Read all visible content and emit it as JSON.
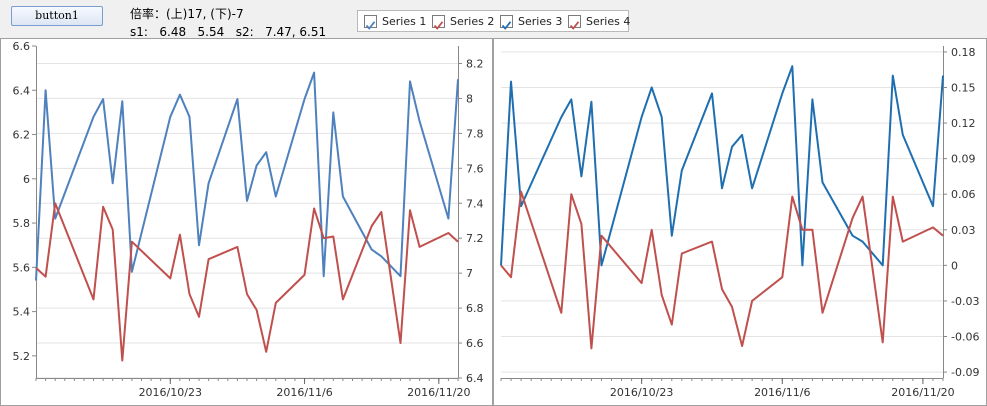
{
  "toolbar": {
    "button1_label": "button1"
  },
  "info": {
    "ratio_label": "倍率：(上)17, (下)-7",
    "values_label": "s1:   6.48   5.54   s2:   7.47, 6.51"
  },
  "legend": [
    {
      "label": "Series 1",
      "color": "#4f81bd"
    },
    {
      "label": "Series 2",
      "color": "#c0504d"
    },
    {
      "label": "Series 3",
      "color": "#1f6fb0"
    },
    {
      "label": "Series 4",
      "color": "#c0504d"
    }
  ],
  "chart_data": [
    {
      "type": "line",
      "x_ticks": [
        "2016/10/23",
        "2016/11/6",
        "2016/11/20"
      ],
      "x_tick_index": [
        14,
        28,
        42
      ],
      "x_count": 45,
      "y_left_ticks": [
        "5.2",
        "5.4",
        "5.6",
        "5.8",
        "6",
        "6.2",
        "6.4",
        "6.6"
      ],
      "y_left_range": [
        5.1,
        6.6
      ],
      "y_right_ticks": [
        "6.4",
        "6.6",
        "6.8",
        "7",
        "7.2",
        "7.4",
        "7.6",
        "7.8",
        "8",
        "8.2"
      ],
      "y_right_range": [
        6.4,
        8.3
      ],
      "grid": true,
      "series": [
        {
          "name": "Series 1",
          "axis": "left",
          "color": "#4f81bd",
          "values": [
            5.54,
            6.4,
            5.82,
            6.28,
            6.36,
            5.98,
            6.35,
            5.58,
            6.28,
            6.38,
            6.28,
            5.7,
            5.98,
            6.36,
            5.9,
            6.06,
            6.12,
            5.92,
            6.36,
            6.48,
            5.56,
            6.3,
            5.92,
            5.68,
            5.65,
            5.56,
            6.44,
            6.26,
            5.82,
            6.45
          ]
        },
        {
          "name": "Series 2",
          "axis": "right",
          "color": "#c0504d",
          "values": [
            7.03,
            6.98,
            7.4,
            6.85,
            7.38,
            7.25,
            6.5,
            7.18,
            6.97,
            7.22,
            6.88,
            6.75,
            7.08,
            7.15,
            6.88,
            6.79,
            6.55,
            6.83,
            6.99,
            7.37,
            7.2,
            7.21,
            6.85,
            7.27,
            7.35,
            6.6,
            7.36,
            7.15,
            7.23,
            7.18
          ]
        }
      ],
      "series_x_index": [
        0,
        1,
        2,
        6,
        7,
        8,
        9,
        10,
        14,
        15,
        16,
        17,
        18,
        21,
        22,
        23,
        24,
        25,
        28,
        29,
        30,
        31,
        32,
        35,
        36,
        38,
        39,
        40,
        43,
        44
      ]
    },
    {
      "type": "line",
      "x_ticks": [
        "2016/10/23",
        "2016/11/6",
        "2016/11/20"
      ],
      "x_tick_index": [
        14,
        28,
        42
      ],
      "x_count": 45,
      "y_left_ticks": [],
      "y_right_ticks": [
        "-0.09",
        "-0.06",
        "-0.03",
        "0",
        "0.03",
        "0.06",
        "0.09",
        "0.12",
        "0.15",
        "0.18"
      ],
      "y_right_range": [
        -0.095,
        0.185
      ],
      "grid": true,
      "series": [
        {
          "name": "Series 3",
          "axis": "right",
          "color": "#1f6fb0",
          "values": [
            0.0,
            0.155,
            0.05,
            0.125,
            0.14,
            0.075,
            0.138,
            0.0,
            0.125,
            0.15,
            0.125,
            0.025,
            0.08,
            0.145,
            0.065,
            0.1,
            0.11,
            0.065,
            0.145,
            0.168,
            0.0,
            0.14,
            0.07,
            0.025,
            0.02,
            0.0,
            0.16,
            0.11,
            0.05,
            0.16
          ]
        },
        {
          "name": "Series 4",
          "axis": "right",
          "color": "#c0504d",
          "values": [
            0.0,
            -0.01,
            0.062,
            -0.04,
            0.06,
            0.035,
            -0.07,
            0.025,
            -0.015,
            0.03,
            -0.025,
            -0.05,
            0.01,
            0.02,
            -0.02,
            -0.035,
            -0.068,
            -0.03,
            -0.01,
            0.058,
            0.03,
            0.03,
            -0.04,
            0.04,
            0.058,
            -0.065,
            0.058,
            0.02,
            0.032,
            0.025
          ]
        }
      ],
      "series_x_index": [
        0,
        1,
        2,
        6,
        7,
        8,
        9,
        10,
        14,
        15,
        16,
        17,
        18,
        21,
        22,
        23,
        24,
        25,
        28,
        29,
        30,
        31,
        32,
        35,
        36,
        38,
        39,
        40,
        43,
        44
      ]
    }
  ]
}
